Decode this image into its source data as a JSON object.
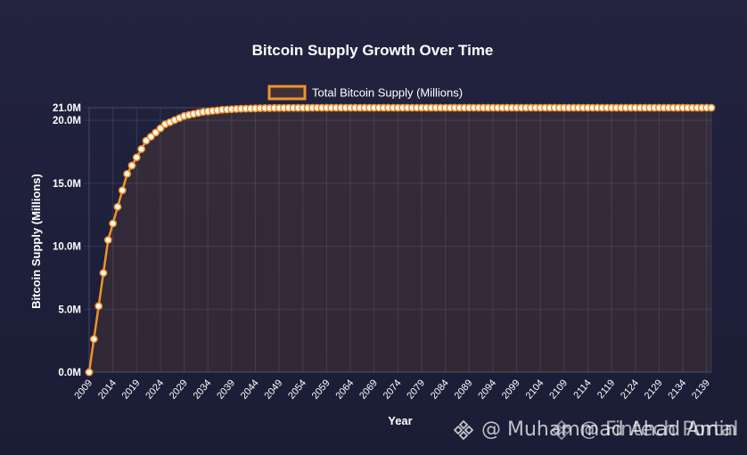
{
  "chart_data": {
    "type": "line",
    "title": "Bitcoin Supply Growth Over Time",
    "xlabel": "Year",
    "ylabel": "Bitcoin Supply (Millions)",
    "legend": {
      "label": "Total Bitcoin Supply (Millions)",
      "placement": "top-center"
    },
    "grid": true,
    "ylim": [
      0,
      21
    ],
    "y_ticks": [
      0,
      5,
      10,
      15,
      20,
      21
    ],
    "y_tick_labels": [
      "0.0M",
      "5.0M",
      "10.0M",
      "15.0M",
      "20.0M",
      "21.0M"
    ],
    "x_tick_labels": [
      "2009",
      "2014",
      "2019",
      "2024",
      "2029",
      "2034",
      "2039",
      "2044",
      "2049",
      "2054",
      "2059",
      "2064",
      "2069",
      "2074",
      "2079",
      "2084",
      "2089",
      "2094",
      "2099",
      "2104",
      "2109",
      "2114",
      "2119",
      "2124",
      "2129",
      "2134",
      "2139"
    ],
    "series": [
      {
        "name": "Total Bitcoin Supply (Millions)",
        "x": [
          2009,
          2010,
          2011,
          2012,
          2013,
          2014,
          2015,
          2016,
          2017,
          2018,
          2019,
          2020,
          2021,
          2022,
          2023,
          2024,
          2025,
          2026,
          2027,
          2028,
          2029,
          2030,
          2031,
          2032,
          2033,
          2034,
          2035,
          2036,
          2037,
          2038,
          2039,
          2040,
          2041,
          2042,
          2043,
          2044,
          2045,
          2046,
          2047,
          2048,
          2049,
          2050,
          2051,
          2052,
          2053,
          2054,
          2055,
          2056,
          2057,
          2058,
          2059,
          2060,
          2061,
          2062,
          2063,
          2064,
          2065,
          2066,
          2067,
          2068,
          2069,
          2070,
          2071,
          2072,
          2073,
          2074,
          2075,
          2076,
          2077,
          2078,
          2079,
          2080,
          2081,
          2082,
          2083,
          2084,
          2085,
          2086,
          2087,
          2088,
          2089,
          2090,
          2091,
          2092,
          2093,
          2094,
          2095,
          2096,
          2097,
          2098,
          2099,
          2100,
          2101,
          2102,
          2103,
          2104,
          2105,
          2106,
          2107,
          2108,
          2109,
          2110,
          2111,
          2112,
          2113,
          2114,
          2115,
          2116,
          2117,
          2118,
          2119,
          2120,
          2121,
          2122,
          2123,
          2124,
          2125,
          2126,
          2127,
          2128,
          2129,
          2130,
          2131,
          2132,
          2133,
          2134,
          2135,
          2136,
          2137,
          2138,
          2139,
          2140
        ],
        "values": [
          0,
          2.63,
          5.25,
          7.88,
          10.5,
          11.81,
          13.13,
          14.44,
          15.75,
          16.41,
          17.06,
          17.72,
          18.38,
          18.7,
          19.03,
          19.36,
          19.69,
          19.85,
          20.02,
          20.18,
          20.34,
          20.43,
          20.51,
          20.59,
          20.67,
          20.71,
          20.75,
          20.79,
          20.84,
          20.86,
          20.88,
          20.9,
          20.92,
          20.93,
          20.94,
          20.95,
          20.96,
          20.97,
          20.97,
          20.98,
          20.98,
          20.98,
          20.99,
          20.99,
          20.99,
          20.99,
          20.99,
          21.0,
          21.0,
          21.0,
          21.0,
          21.0,
          21.0,
          21.0,
          21.0,
          21.0,
          21.0,
          21.0,
          21.0,
          21.0,
          21.0,
          21.0,
          21.0,
          21.0,
          21.0,
          21.0,
          21.0,
          21.0,
          21.0,
          21.0,
          21.0,
          21.0,
          21.0,
          21.0,
          21.0,
          21.0,
          21.0,
          21.0,
          21.0,
          21.0,
          21.0,
          21.0,
          21.0,
          21.0,
          21.0,
          21.0,
          21.0,
          21.0,
          21.0,
          21.0,
          21.0,
          21.0,
          21.0,
          21.0,
          21.0,
          21.0,
          21.0,
          21.0,
          21.0,
          21.0,
          21.0,
          21.0,
          21.0,
          21.0,
          21.0,
          21.0,
          21.0,
          21.0,
          21.0,
          21.0,
          21.0,
          21.0,
          21.0,
          21.0,
          21.0,
          21.0,
          21.0,
          21.0,
          21.0,
          21.0,
          21.0,
          21.0,
          21.0,
          21.0,
          21.0,
          21.0,
          21.0,
          21.0,
          21.0,
          21.0,
          21.0,
          21.0
        ]
      }
    ]
  },
  "colors": {
    "line": "#f0932b",
    "marker_fill": "#ffffff",
    "area_fill": "rgba(240,147,43,0.10)",
    "grid": "rgba(255,255,255,0.10)",
    "text": "#ffffff"
  },
  "watermark": {
    "icon": "binance-logo-icon",
    "text": "@ Muhammad Ahad Amin",
    "text2": "@ Fintech Portal"
  }
}
